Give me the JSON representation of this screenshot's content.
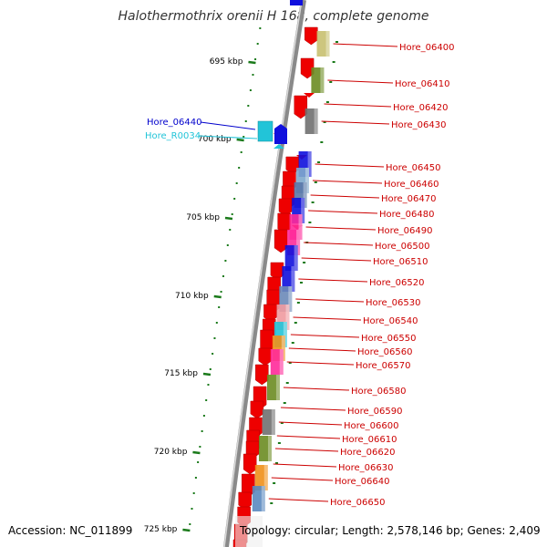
{
  "title": "Halothermothrix orenii H 168, complete genome",
  "footer": {
    "accession": "Accession: NC_011899",
    "info": "Topology: circular; Length: 2,578,146 bp; Genes: 2,409"
  },
  "colors": {
    "backbone": "#8a8a8a",
    "gene_label": "#cc0000",
    "tick": "#1a7a1a",
    "forward_strand": "#ee0000"
  },
  "kbp_ticks": [
    {
      "label": "695 kbp",
      "kbp": 695
    },
    {
      "label": "700 kbp",
      "kbp": 700
    },
    {
      "label": "705 kbp",
      "kbp": 705
    },
    {
      "label": "710 kbp",
      "kbp": 710
    },
    {
      "label": "715 kbp",
      "kbp": 715
    },
    {
      "label": "720 kbp",
      "kbp": 720
    },
    {
      "label": "725 kbp",
      "kbp": 725
    }
  ],
  "left_genes": [
    {
      "label": "Hore_06440",
      "color": "#0000cc"
    },
    {
      "label": "Hore_R0034",
      "color": "#22c4d8"
    }
  ],
  "right_genes": [
    {
      "label": "Hore_06400",
      "color": "#cc0000",
      "box": "#c8c070"
    },
    {
      "label": "Hore_06410",
      "color": "#cc0000",
      "box": "#6b8c22"
    },
    {
      "label": "Hore_06420",
      "color": "#cc0000",
      "box": ""
    },
    {
      "label": "Hore_06430",
      "color": "#cc0000",
      "box": "#707070"
    },
    {
      "label": "Hore_06450",
      "color": "#cc0000",
      "box": "#1010dd"
    },
    {
      "label": "Hore_06460",
      "color": "#cc0000",
      "box": "#7fa8cc"
    },
    {
      "label": "Hore_06470",
      "color": "#cc0000",
      "box": "#5a78a8"
    },
    {
      "label": "Hore_06480",
      "color": "#cc0000",
      "box": "#1010dd"
    },
    {
      "label": "Hore_06490",
      "color": "#cc0000",
      "box": "#ff2a9a"
    },
    {
      "label": "Hore_06500",
      "color": "#cc0000",
      "box": "#ff2a9a"
    },
    {
      "label": "Hore_06510",
      "color": "#cc0000",
      "box": "#1010dd"
    },
    {
      "label": "Hore_06520",
      "color": "#cc0000",
      "box": "#1010dd"
    },
    {
      "label": "Hore_06530",
      "color": "#cc0000",
      "box": "#6c8ab8"
    },
    {
      "label": "Hore_06540",
      "color": "#cc0000",
      "box": "#f09aa0"
    },
    {
      "label": "Hore_06550",
      "color": "#cc0000",
      "box": "#22c4d8"
    },
    {
      "label": "Hore_06560",
      "color": "#cc0000",
      "box": "#f0901a"
    },
    {
      "label": "Hore_06570",
      "color": "#cc0000",
      "box": "#ff2a9a"
    },
    {
      "label": "Hore_06580",
      "color": "#cc0000",
      "box": "#6b8c22"
    },
    {
      "label": "Hore_06590",
      "color": "#cc0000",
      "box": ""
    },
    {
      "label": "Hore_06600",
      "color": "#cc0000",
      "box": "#707070"
    },
    {
      "label": "Hore_06610",
      "color": "#cc0000",
      "box": ""
    },
    {
      "label": "Hore_06620",
      "color": "#cc0000",
      "box": "#6b8c22"
    },
    {
      "label": "Hore_06630",
      "color": "#cc0000",
      "box": ""
    },
    {
      "label": "Hore_06640",
      "color": "#cc0000",
      "box": "#f0901a"
    },
    {
      "label": "Hore_06650",
      "color": "#cc0000",
      "box": "#5a8ac0"
    }
  ]
}
